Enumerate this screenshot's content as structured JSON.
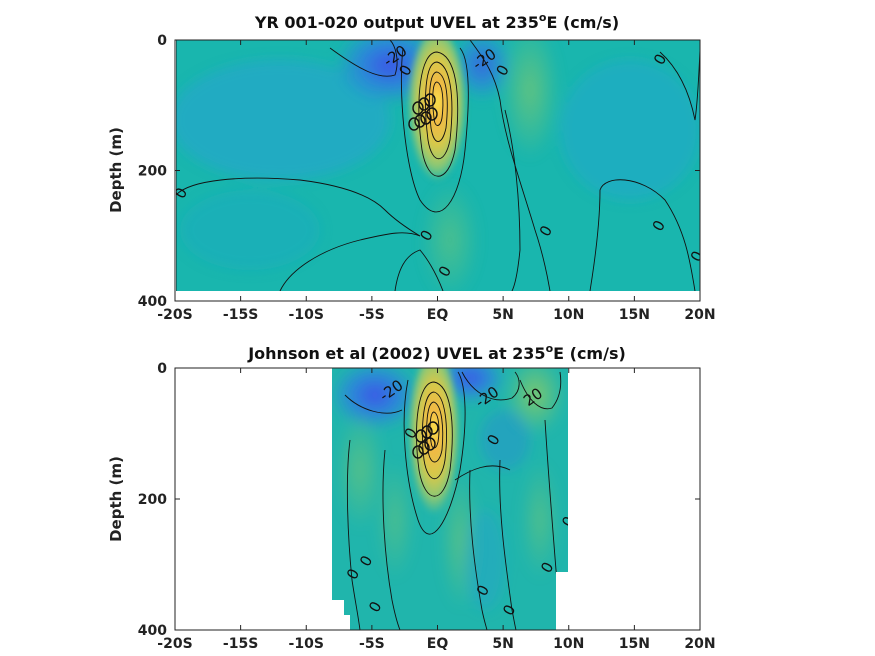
{
  "chart_data": [
    {
      "type": "heatmap",
      "title": "YR 001-020 output UVEL at 235",
      "title_sup": "o",
      "title_end": "E (cm/s)",
      "ylabel": "Depth (m)",
      "xlabel": "",
      "xlim": [
        -20,
        20
      ],
      "ylim": [
        0,
        400
      ],
      "y_reversed": true,
      "x_ticks": [
        -20,
        -15,
        -10,
        -5,
        0,
        5,
        10,
        15,
        20
      ],
      "x_tick_labels": [
        "-20S",
        "-15S",
        "-10S",
        "-5S",
        "EQ",
        "5N",
        "10N",
        "15N",
        "20N"
      ],
      "y_ticks": [
        0,
        200,
        400
      ],
      "y_tick_labels": [
        "0",
        "200",
        "400"
      ],
      "data_extent": {
        "lat": [
          -20,
          20
        ],
        "depth": [
          0,
          385
        ]
      },
      "features": [
        {
          "kind": "eastward_core",
          "lat": 0,
          "depth": 85,
          "value": 100
        },
        {
          "kind": "westward_jet",
          "lat": -3,
          "depth": 25,
          "value": -40
        },
        {
          "kind": "westward_jet",
          "lat": 3,
          "depth": 25,
          "value": -35
        }
      ],
      "contour_labels": [
        {
          "text": "-20",
          "lat": -3.2,
          "depth": 25
        },
        {
          "text": "-20",
          "lat": 3.6,
          "depth": 30
        },
        {
          "text": "0",
          "lat": -2.4,
          "depth": 47
        },
        {
          "text": "0",
          "lat": 5.0,
          "depth": 47
        },
        {
          "text": "0",
          "lat": -19.5,
          "depth": 235
        },
        {
          "text": "0",
          "lat": -0.8,
          "depth": 300
        },
        {
          "text": "0",
          "lat": 0.6,
          "depth": 355
        },
        {
          "text": "0",
          "lat": 8.3,
          "depth": 293
        },
        {
          "text": "0",
          "lat": 16.9,
          "depth": 285
        },
        {
          "text": "0",
          "lat": 19.8,
          "depth": 332
        },
        {
          "text": "0",
          "lat": 17.0,
          "depth": 30
        }
      ],
      "colors": {
        "min": "#3d52e8",
        "mid": "#1bb5b0",
        "max": "#f9e84c"
      }
    },
    {
      "type": "heatmap",
      "title": "Johnson et al (2002) UVEL at 235",
      "title_sup": "o",
      "title_end": "E (cm/s)",
      "ylabel": "Depth (m)",
      "xlabel": "",
      "xlim": [
        -20,
        20
      ],
      "ylim": [
        0,
        400
      ],
      "y_reversed": true,
      "x_ticks": [
        -20,
        -15,
        -10,
        -5,
        0,
        5,
        10,
        15,
        20
      ],
      "x_tick_labels": [
        "-20S",
        "-15S",
        "-10S",
        "-5S",
        "EQ",
        "5N",
        "10N",
        "15N",
        "20N"
      ],
      "y_ticks": [
        0,
        200,
        400
      ],
      "y_tick_labels": [
        "0",
        "200",
        "400"
      ],
      "data_extent": {
        "lat": [
          -8,
          10
        ],
        "depth": [
          0,
          400
        ]
      },
      "features": [
        {
          "kind": "eastward_core",
          "lat": 0,
          "depth": 85,
          "value": 100
        },
        {
          "kind": "westward_jet",
          "lat": -5,
          "depth": 25,
          "value": -35
        },
        {
          "kind": "westward_jet",
          "lat": 2.5,
          "depth": 10,
          "value": -45
        },
        {
          "kind": "eastward_jet",
          "lat": 7,
          "depth": 25,
          "value": 30
        }
      ],
      "contour_labels": [
        {
          "text": "-20",
          "lat": -3.5,
          "depth": 35
        },
        {
          "text": "-20",
          "lat": 3.8,
          "depth": 45
        },
        {
          "text": "20",
          "lat": 7.3,
          "depth": 45
        },
        {
          "text": "0",
          "lat": -2.0,
          "depth": 100
        },
        {
          "text": "0",
          "lat": 4.3,
          "depth": 110
        },
        {
          "text": "0",
          "lat": 10.0,
          "depth": 235
        },
        {
          "text": "0",
          "lat": -6.4,
          "depth": 315
        },
        {
          "text": "0",
          "lat": -5.4,
          "depth": 295
        },
        {
          "text": "0",
          "lat": -4.7,
          "depth": 365
        },
        {
          "text": "0",
          "lat": 3.5,
          "depth": 340
        },
        {
          "text": "0",
          "lat": 5.5,
          "depth": 370
        },
        {
          "text": "0",
          "lat": 8.4,
          "depth": 305
        }
      ],
      "colors": {
        "min": "#3d52e8",
        "mid": "#1bb5b0",
        "max": "#f9e84c"
      }
    }
  ]
}
